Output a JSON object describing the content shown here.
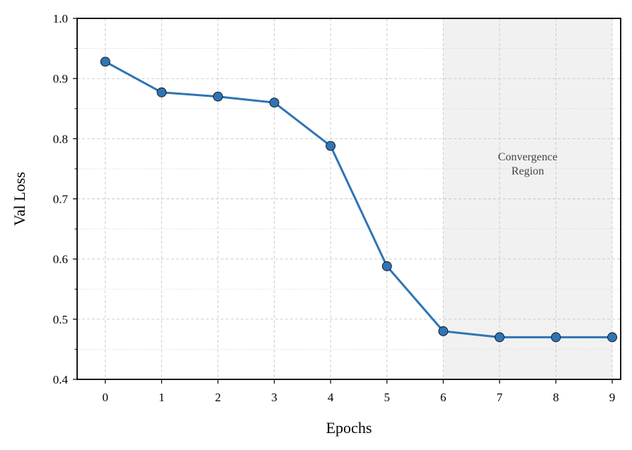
{
  "chart_data": {
    "type": "line",
    "title": "",
    "xlabel": "Epochs",
    "ylabel": "Val Loss",
    "x": [
      0,
      1,
      2,
      3,
      4,
      5,
      6,
      7,
      8,
      9
    ],
    "series": [
      {
        "values": [
          0.928,
          0.877,
          0.87,
          0.86,
          0.788,
          0.588,
          0.48,
          0.47,
          0.47,
          0.47
        ],
        "color": "#2f74b4",
        "marker": "circle"
      }
    ],
    "xlim": [
      -0.5,
      9.15
    ],
    "ylim": [
      0.4,
      1.0
    ],
    "xticks": [
      "0",
      "1",
      "2",
      "3",
      "4",
      "5",
      "6",
      "7",
      "8",
      "9"
    ],
    "yticks": [
      "0.4",
      "0.5",
      "0.6",
      "0.7",
      "0.8",
      "0.9",
      "1.0"
    ],
    "grid": true,
    "shaded_region": {
      "x_range": [
        6,
        9
      ],
      "label_line1": "Convergence",
      "label_line2": "Region",
      "color": "#f1f1f1"
    },
    "legend": "none"
  }
}
